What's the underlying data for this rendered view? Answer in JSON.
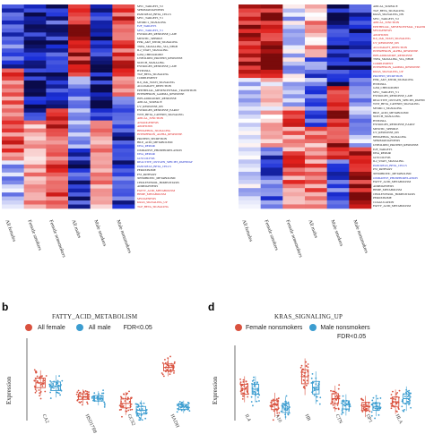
{
  "panel_a": {
    "genes": [
      "MYC_TARGETS_V2",
      "SPERMATOGENESIS",
      "PANCREAS_BETA_CELLS",
      "MYC_TARGETS_V1",
      "MTORC1_SIGNALING",
      "E2F_TARGETS",
      "MYC_TARGETS_V1",
      "ESTROGEN_RESPONSE_LATE",
      "MITOTIC_SPINDLE",
      "PI3K_AKT_MTOR_SIGNALING",
      "TNFA_SIGNALING_VIA_NFKB",
      "IL2_STAT5_SIGNALING",
      "G2M_CHECKPOINT",
      "UNFOLDED_PROTEIN_RESPONSE",
      "NOTCH_SIGNALING",
      "ESTROGEN_RESPONSE_LATE",
      "HYPOXIA",
      "TGF_BETA_SIGNALING",
      "COMPLEMENT",
      "IL6_JAK_STAT3_SIGNALING",
      "ALLOGRAFT_REJECTION",
      "EPITHELIAL_MESENCHYMAL_TRANSITION",
      "INTERFERON_GAMMA_RESPONSE",
      "INFLAMMATORY_RESPONSE",
      "APICAL_SURFACE",
      "UV_RESPONSE_DN",
      "ESTROGEN_RESPONSE_EARLY",
      "WNT_BETA_CATENIN_SIGNALING",
      "APICAL_JUNCTION",
      "ANGIOGENESIS",
      "APOPTOSIS",
      "HEDGEHOG_SIGNALING",
      "INTERFERON_ALPHA_RESPONSE",
      "PROTEIN_SECRETION",
      "BILE_ACID_METABOLISM",
      "DNA_REPAIR",
      "OXIDATIVE_PHOSPHORYLATION",
      "DNA_REPAIR",
      "GLYCOLYSIS",
      "REACTIVE_OXYGEN_SPECIES_PATHWAY",
      "PANCREAS_BETA_CELLS",
      "PEROXISOME",
      "P53_PATHWAY",
      "XENOBIOTIC_METABOLISM",
      "CHOLESTEROL_HOMEOSTASIS",
      "ADIPOGENESIS",
      "FATTY_ACID_METABOLISM",
      "HEME_METABOLISM",
      "MYOGENESIS",
      "KRAS_SIGNALING_UP",
      "TGF_BETA_SIGNALING"
    ],
    "gene_colors": [
      "#222",
      "#222",
      "#222",
      "#222",
      "#222",
      "#2233cc",
      "#2233cc",
      "#222",
      "#222",
      "#222",
      "#222",
      "#222",
      "#222",
      "#222",
      "#222",
      "#222",
      "#222",
      "#222",
      "#222",
      "#222",
      "#222",
      "#222",
      "#222",
      "#222",
      "#222",
      "#222",
      "#222",
      "#222",
      "#d22",
      "#d22",
      "#d22",
      "#d22",
      "#d22",
      "#222",
      "#222",
      "#2233cc",
      "#222",
      "#2233cc",
      "#2233cc",
      "#2233cc",
      "#2233cc",
      "#222",
      "#222",
      "#222",
      "#222",
      "#222",
      "#d22",
      "#d22",
      "#d22",
      "#d22",
      "#d22"
    ],
    "columns": [
      "All females",
      "Female smokers",
      "Female nonsmokers",
      "All males",
      "Male smokers",
      "Male nonsmokers"
    ]
  },
  "panel_c": {
    "genes": [
      "APICAL_SURFACE",
      "TGF_BETA_SIGNALING",
      "KRAS_SIGNALING_DN",
      "MYC_TARGETS_V2",
      "APICAL_JUNCTION",
      "EPITHELIAL_MESENCHYMAL_TRANSITION",
      "MYOGENESIS",
      "APOPTOSIS",
      "IL6_JAK_STAT3_SIGNALING",
      "UV_RESPONSE_DN",
      "ALLOGRAFT_REJECTION",
      "INTERFERON_ALPHA_RESPONSE",
      "INFLAMMATORY_RESPONSE",
      "TNFA_SIGNALING_VIA_NFKB",
      "COMPLEMENT",
      "INTERFERON_GAMMA_RESPONSE",
      "KRAS_SIGNALING_UP",
      "PROTEIN_SECRETION",
      "PI3K_AKT_MTOR_SIGNALING",
      "HYPOXIA",
      "G2M_CHECKPOINT",
      "MYC_TARGETS_V1",
      "ESTROGEN_RESPONSE_LATE",
      "REACTIVE_OXYGEN_SPECIES_PATHWAY",
      "WNT_BETA_CATENIN_SIGNALING",
      "MTORC1_SIGNALING",
      "BILE_ACID_METABOLISM",
      "NOTCH_SIGNALING",
      "HYPOXIA",
      "ESTROGEN_RESPONSE_EARLY",
      "MITOTIC_SPINDLE",
      "UV_RESPONSE_DN",
      "HEDGEHOG_SIGNALING",
      "SPERMATOGENESIS",
      "UNFOLDED_PROTEIN_RESPONSE",
      "E2F_TARGETS",
      "DNA_REPAIR",
      "GLYCOLYSIS",
      "IL2_STAT5_SIGNALING",
      "PANCREAS_BETA_CELLS",
      "P53_PATHWAY",
      "XENOBIOTIC_METABOLISM",
      "OXIDATIVE_PHOSPHORYLATION",
      "FATTY_ACID_METABOLISM",
      "ADIPOGENESIS",
      "HEME_METABOLISM",
      "CHOLESTEROL_HOMEOSTASIS",
      "PEROXISOME",
      "COAGULATION",
      "FATTY_ACID_METABOLISM"
    ],
    "gene_colors": [
      "#222",
      "#222",
      "#222",
      "#222",
      "#d22",
      "#d22",
      "#d22",
      "#d22",
      "#d22",
      "#d22",
      "#d22",
      "#d22",
      "#d22",
      "#222",
      "#d22",
      "#d22",
      "#d22",
      "#2233cc",
      "#222",
      "#222",
      "#222",
      "#222",
      "#222",
      "#222",
      "#222",
      "#222",
      "#222",
      "#222",
      "#222",
      "#222",
      "#222",
      "#222",
      "#222",
      "#222",
      "#222",
      "#222",
      "#222",
      "#222",
      "#222",
      "#2233cc",
      "#222",
      "#222",
      "#2233cc",
      "#222",
      "#222",
      "#222",
      "#222",
      "#222",
      "#222",
      "#222"
    ],
    "columns": [
      "All females",
      "Female smokers",
      "Female nonsmokers",
      "All males",
      "Male smokers",
      "Male nonsmokers"
    ]
  },
  "panel_b": {
    "letter": "b",
    "title": "FATTY_ACID_METABOLISM",
    "legend_title": "",
    "legend_items": [
      "All female",
      "All male"
    ],
    "fdr_label": "FDR<0.05",
    "ylabel": "Expression",
    "genes": [
      "CA2",
      "HSD17B8",
      "GCS2",
      "HADH"
    ]
  },
  "panel_d": {
    "letter": "d",
    "title": "KRAS_SIGNALING_UP",
    "legend_items": [
      "Female nonsmokers",
      "Male nonsmokers"
    ],
    "fdr_label": "FDR<0.05",
    "ylabel": "Expression",
    "genes": [
      "IL4",
      "A10",
      "HB",
      "CTN",
      "DP1",
      "HLA"
    ]
  },
  "colors": {
    "female": "#d9513e",
    "male": "#3c9dd0",
    "heat_high": "#e0201c",
    "heat_low": "#1a2fd8",
    "heat_mid": "#ffffff",
    "heat_extreme_high": "#7a0b0b",
    "heat_extreme_low": "#0a0a4a"
  }
}
